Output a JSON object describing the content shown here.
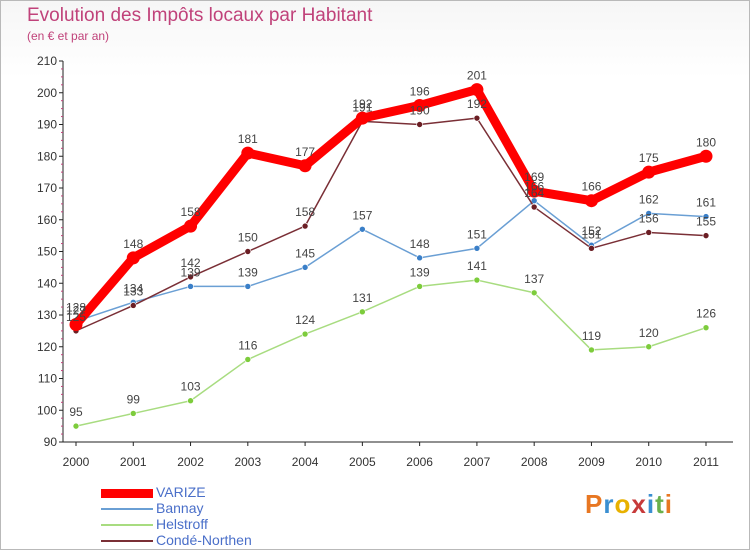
{
  "header": {
    "title": "Evolution des Impôts locaux par Habitant",
    "subtitle": "(en € et par an)"
  },
  "logo": {
    "text": "Proxiti",
    "colors": [
      "#e87722",
      "#3a8fd1",
      "#e8b100",
      "#c73a3a",
      "#3a8fd1",
      "#6ab04c",
      "#e87722"
    ]
  },
  "chart_data": {
    "type": "line",
    "title": "Evolution des Impôts locaux par Habitant",
    "subtitle": "(en € et par an)",
    "x": [
      "2000",
      "2001",
      "2002",
      "2003",
      "2004",
      "2005",
      "2006",
      "2007",
      "2008",
      "2009",
      "2010",
      "2011"
    ],
    "ylim": [
      90,
      210
    ],
    "yticks": [
      90,
      100,
      110,
      120,
      130,
      140,
      150,
      160,
      170,
      180,
      190,
      200,
      210
    ],
    "grid": false,
    "legend": "bottom-left",
    "series": [
      {
        "name": "VARIZE",
        "color": "#ff0000",
        "marker": "#ff0000",
        "values": [
          127,
          148,
          158,
          181,
          177,
          192,
          196,
          201,
          169,
          166,
          175,
          180
        ]
      },
      {
        "name": "Bannay",
        "color": "#6a9fd4",
        "marker": "#3a7fc8",
        "values": [
          128,
          134,
          139,
          139,
          145,
          157,
          148,
          151,
          166,
          152,
          162,
          161
        ]
      },
      {
        "name": "Helstroff",
        "color": "#a8dc80",
        "marker": "#7dcc3c",
        "values": [
          95,
          99,
          103,
          116,
          124,
          131,
          139,
          141,
          137,
          119,
          120,
          126
        ]
      },
      {
        "name": "Condé-Northen",
        "color": "#7a2f36",
        "marker": "#6b1e24",
        "values": [
          125,
          133,
          142,
          150,
          158,
          191,
          190,
          192,
          164,
          151,
          156,
          155
        ]
      }
    ]
  }
}
